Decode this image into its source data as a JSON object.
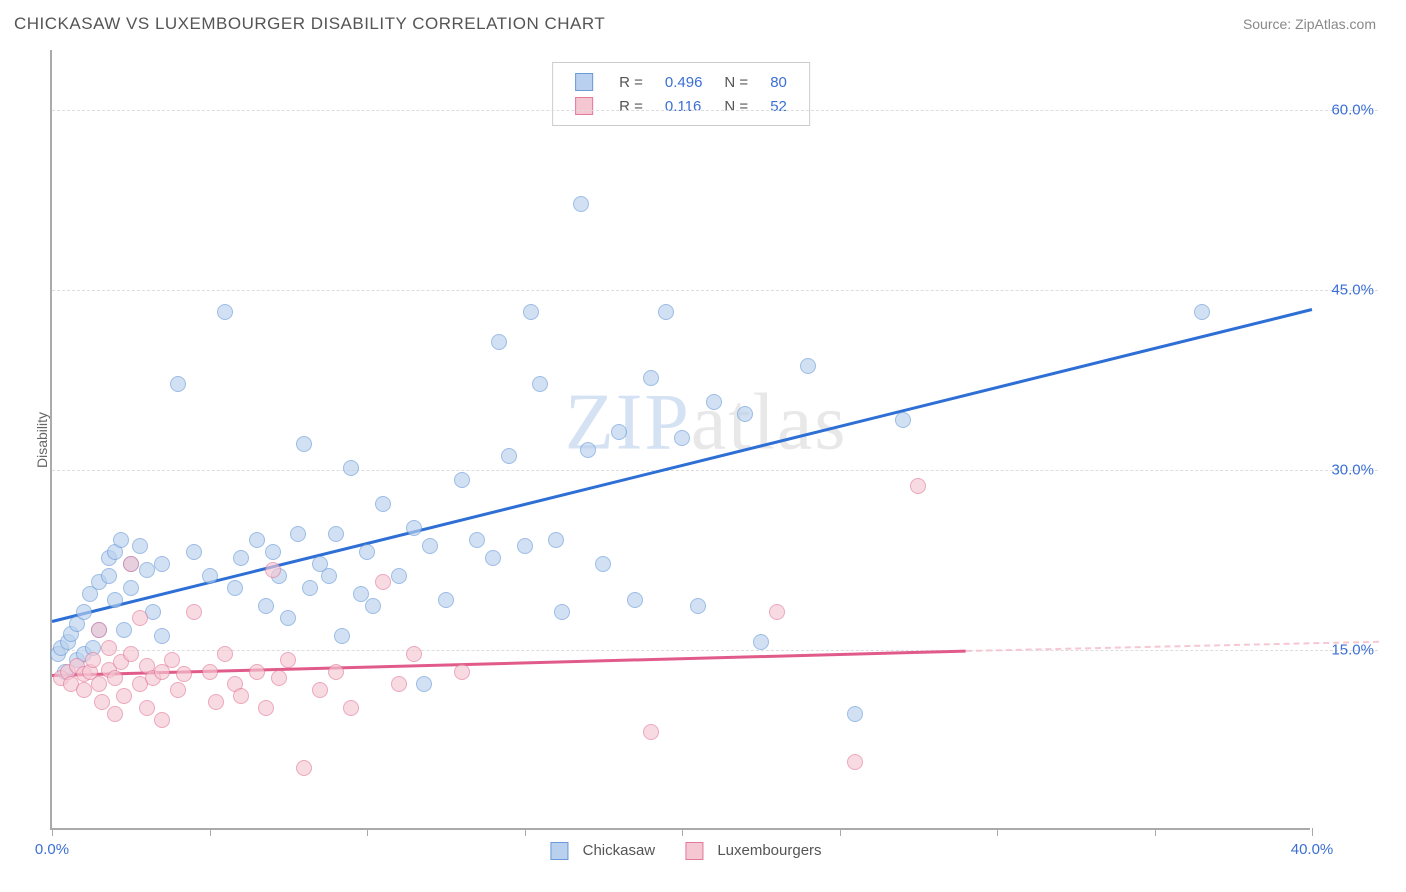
{
  "header": {
    "title": "CHICKASAW VS LUXEMBOURGER DISABILITY CORRELATION CHART",
    "source": "Source: ZipAtlas.com"
  },
  "chart": {
    "type": "scatter",
    "ylabel": "Disability",
    "xlim": [
      0,
      40
    ],
    "ylim": [
      0,
      65
    ],
    "xtick_positions": [
      0,
      5,
      10,
      15,
      20,
      25,
      30,
      35,
      40
    ],
    "xtick_labels_shown": {
      "0": "0.0%",
      "40": "40.0%"
    },
    "ytick_positions": [
      15,
      30,
      45,
      60
    ],
    "ytick_labels": {
      "15": "15.0%",
      "30": "30.0%",
      "45": "45.0%",
      "60": "60.0%"
    },
    "background_color": "#ffffff",
    "grid_color": "#dddddd",
    "axis_color": "#aaaaaa",
    "point_radius": 8,
    "series": [
      {
        "name": "Chickasaw",
        "fill_color": "#b9d1ee",
        "stroke_color": "#6a9bd8",
        "fill_opacity": 0.65,
        "R": "0.496",
        "N": "80",
        "trend": {
          "x1": 0,
          "y1": 17.5,
          "x2": 40,
          "y2": 43.5,
          "color": "#2e6fd6",
          "solid_until_x": 40
        },
        "points": [
          [
            0.2,
            14.5
          ],
          [
            0.3,
            15.0
          ],
          [
            0.4,
            13.0
          ],
          [
            0.5,
            15.5
          ],
          [
            0.6,
            16.2
          ],
          [
            0.8,
            14.0
          ],
          [
            0.8,
            17.0
          ],
          [
            1.0,
            18.0
          ],
          [
            1.0,
            14.5
          ],
          [
            1.2,
            19.5
          ],
          [
            1.3,
            15.0
          ],
          [
            1.5,
            20.5
          ],
          [
            1.5,
            16.5
          ],
          [
            1.8,
            21.0
          ],
          [
            1.8,
            22.5
          ],
          [
            2.0,
            23.0
          ],
          [
            2.0,
            19.0
          ],
          [
            2.2,
            24.0
          ],
          [
            2.3,
            16.5
          ],
          [
            2.5,
            20.0
          ],
          [
            2.5,
            22.0
          ],
          [
            2.8,
            23.5
          ],
          [
            3.0,
            21.5
          ],
          [
            3.2,
            18.0
          ],
          [
            3.5,
            22.0
          ],
          [
            3.5,
            16.0
          ],
          [
            4.0,
            37.0
          ],
          [
            4.5,
            23.0
          ],
          [
            5.0,
            21.0
          ],
          [
            5.5,
            43.0
          ],
          [
            5.8,
            20.0
          ],
          [
            6.0,
            22.5
          ],
          [
            6.5,
            24.0
          ],
          [
            6.8,
            18.5
          ],
          [
            7.0,
            23.0
          ],
          [
            7.2,
            21.0
          ],
          [
            7.5,
            17.5
          ],
          [
            7.8,
            24.5
          ],
          [
            8.0,
            32.0
          ],
          [
            8.2,
            20.0
          ],
          [
            8.5,
            22.0
          ],
          [
            8.8,
            21.0
          ],
          [
            9.0,
            24.5
          ],
          [
            9.2,
            16.0
          ],
          [
            9.5,
            30.0
          ],
          [
            9.8,
            19.5
          ],
          [
            10.0,
            23.0
          ],
          [
            10.2,
            18.5
          ],
          [
            10.5,
            27.0
          ],
          [
            11.0,
            21.0
          ],
          [
            11.5,
            25.0
          ],
          [
            11.8,
            12.0
          ],
          [
            12.0,
            23.5
          ],
          [
            12.5,
            19.0
          ],
          [
            13.0,
            29.0
          ],
          [
            13.5,
            24.0
          ],
          [
            14.0,
            22.5
          ],
          [
            14.2,
            40.5
          ],
          [
            14.5,
            31.0
          ],
          [
            15.0,
            23.5
          ],
          [
            15.2,
            43.0
          ],
          [
            15.5,
            37.0
          ],
          [
            16.0,
            24.0
          ],
          [
            16.2,
            18.0
          ],
          [
            16.8,
            52.0
          ],
          [
            17.0,
            31.5
          ],
          [
            17.5,
            22.0
          ],
          [
            18.0,
            33.0
          ],
          [
            18.5,
            19.0
          ],
          [
            19.0,
            37.5
          ],
          [
            19.5,
            43.0
          ],
          [
            20.0,
            32.5
          ],
          [
            20.5,
            18.5
          ],
          [
            21.0,
            35.5
          ],
          [
            22.0,
            34.5
          ],
          [
            22.5,
            15.5
          ],
          [
            24.0,
            38.5
          ],
          [
            25.5,
            9.5
          ],
          [
            27.0,
            34.0
          ],
          [
            36.5,
            43.0
          ]
        ]
      },
      {
        "name": "Luxembourgers",
        "fill_color": "#f5c7d3",
        "stroke_color": "#e27a9a",
        "fill_opacity": 0.65,
        "R": "0.116",
        "N": "52",
        "trend": {
          "x1": 0,
          "y1": 13.0,
          "x2": 40,
          "y2": 15.8,
          "color": "#e15b8a",
          "solid_until_x": 29
        },
        "points": [
          [
            0.3,
            12.5
          ],
          [
            0.5,
            13.0
          ],
          [
            0.6,
            12.0
          ],
          [
            0.8,
            13.5
          ],
          [
            1.0,
            12.8
          ],
          [
            1.0,
            11.5
          ],
          [
            1.2,
            13.0
          ],
          [
            1.3,
            14.0
          ],
          [
            1.5,
            12.0
          ],
          [
            1.5,
            16.5
          ],
          [
            1.6,
            10.5
          ],
          [
            1.8,
            13.2
          ],
          [
            1.8,
            15.0
          ],
          [
            2.0,
            12.5
          ],
          [
            2.0,
            9.5
          ],
          [
            2.2,
            13.8
          ],
          [
            2.3,
            11.0
          ],
          [
            2.5,
            22.0
          ],
          [
            2.5,
            14.5
          ],
          [
            2.8,
            12.0
          ],
          [
            2.8,
            17.5
          ],
          [
            3.0,
            13.5
          ],
          [
            3.0,
            10.0
          ],
          [
            3.2,
            12.5
          ],
          [
            3.5,
            13.0
          ],
          [
            3.5,
            9.0
          ],
          [
            3.8,
            14.0
          ],
          [
            4.0,
            11.5
          ],
          [
            4.2,
            12.8
          ],
          [
            4.5,
            18.0
          ],
          [
            5.0,
            13.0
          ],
          [
            5.2,
            10.5
          ],
          [
            5.5,
            14.5
          ],
          [
            5.8,
            12.0
          ],
          [
            6.0,
            11.0
          ],
          [
            6.5,
            13.0
          ],
          [
            6.8,
            10.0
          ],
          [
            7.0,
            21.5
          ],
          [
            7.2,
            12.5
          ],
          [
            7.5,
            14.0
          ],
          [
            8.0,
            5.0
          ],
          [
            8.5,
            11.5
          ],
          [
            9.0,
            13.0
          ],
          [
            9.5,
            10.0
          ],
          [
            10.5,
            20.5
          ],
          [
            11.0,
            12.0
          ],
          [
            11.5,
            14.5
          ],
          [
            13.0,
            13.0
          ],
          [
            19.0,
            8.0
          ],
          [
            23.0,
            18.0
          ],
          [
            25.5,
            5.5
          ],
          [
            27.5,
            28.5
          ]
        ]
      }
    ],
    "legend_bottom": [
      {
        "label": "Chickasaw",
        "fill": "#b9d1ee",
        "stroke": "#6a9bd8"
      },
      {
        "label": "Luxembourgers",
        "fill": "#f5c7d3",
        "stroke": "#e27a9a"
      }
    ],
    "watermark": {
      "text_pre": "ZIP",
      "text_post": "atlas"
    }
  }
}
